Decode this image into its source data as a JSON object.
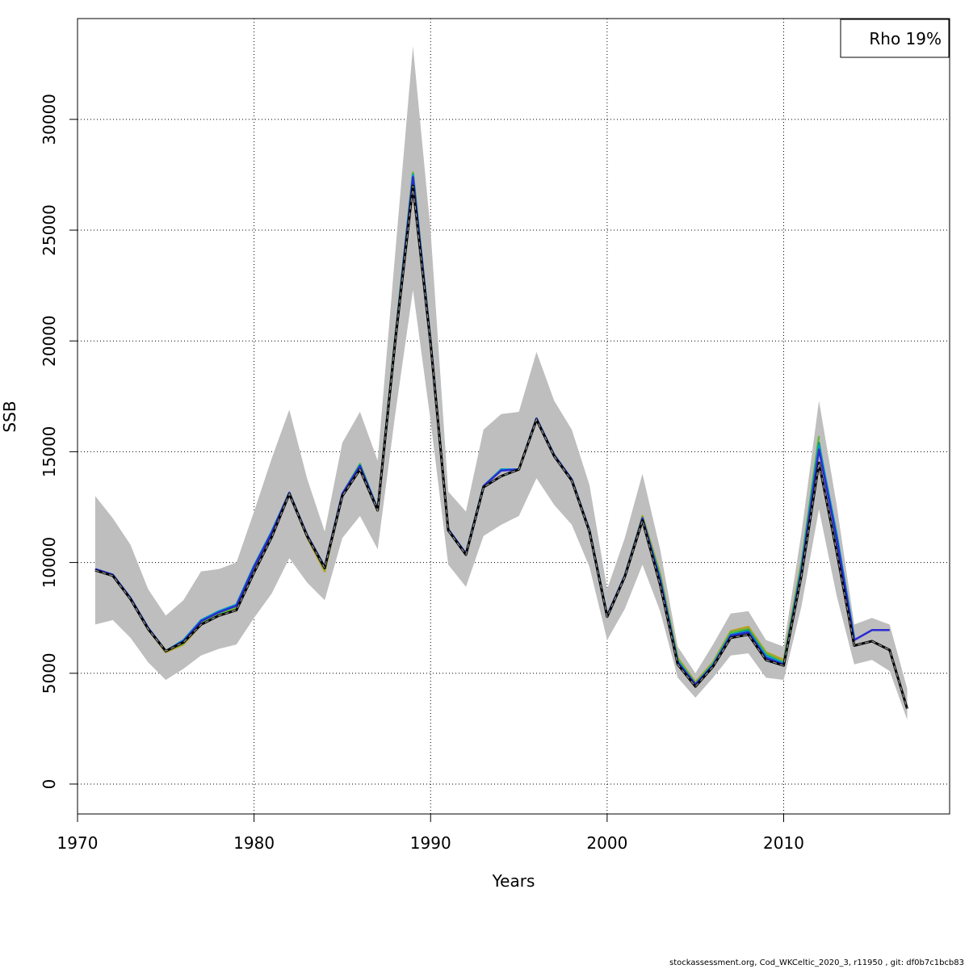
{
  "chart_data": {
    "type": "line",
    "title": "",
    "xlabel": "Years",
    "ylabel": "SSB",
    "xlim": [
      1970,
      2019.4
    ],
    "ylim": [
      -1350,
      34550
    ],
    "grid": true,
    "legend_text": "Rho 19%",
    "legend_position": "top-right",
    "x_ticks": [
      1970,
      1980,
      1990,
      2000,
      2010
    ],
    "y_ticks": [
      0,
      5000,
      10000,
      15000,
      20000,
      25000,
      30000
    ],
    "colors": {
      "band": "#bebebe",
      "base": "#000000",
      "peels": [
        "#2b2bd1",
        "#00a0c8",
        "#1a9a50",
        "#5fb83c",
        "#b8a020"
      ]
    },
    "band": {
      "x": [
        1971,
        1972,
        1973,
        1974,
        1975,
        1976,
        1977,
        1978,
        1979,
        1980,
        1981,
        1982,
        1983,
        1984,
        1985,
        1986,
        1987,
        1988,
        1989,
        1990,
        1991,
        1992,
        1993,
        1994,
        1995,
        1996,
        1997,
        1998,
        1999,
        2000,
        2001,
        2002,
        2003,
        2004,
        2005,
        2006,
        2007,
        2008,
        2009,
        2010,
        2011,
        2012,
        2013,
        2014,
        2015,
        2016,
        2017
      ],
      "upper": [
        13000,
        12000,
        10800,
        8800,
        7600,
        8300,
        9600,
        9700,
        10000,
        12300,
        14700,
        16900,
        13800,
        11400,
        15400,
        16800,
        14600,
        24000,
        33300,
        25000,
        13200,
        12300,
        16000,
        16700,
        16800,
        19500,
        17300,
        16000,
        13500,
        8800,
        11100,
        14000,
        10600,
        6200,
        5000,
        6300,
        7700,
        7800,
        6500,
        6200,
        11300,
        17300,
        12600,
        7200,
        7500,
        7200,
        4300
      ],
      "lower": [
        7200,
        7400,
        6600,
        5500,
        4700,
        5200,
        5800,
        6100,
        6300,
        7500,
        8600,
        10200,
        9100,
        8300,
        11100,
        12100,
        10600,
        16700,
        22300,
        16400,
        9900,
        8900,
        11200,
        11700,
        12100,
        13800,
        12600,
        11700,
        9800,
        6500,
        7900,
        9900,
        7800,
        4800,
        3900,
        4800,
        5800,
        5900,
        4800,
        4700,
        8000,
        12400,
        8500,
        5400,
        5600,
        5100,
        2900
      ]
    },
    "series": [
      {
        "x": [
          1971,
          1972,
          1973,
          1974,
          1975,
          1976,
          1977,
          1978,
          1979,
          1980,
          1981,
          1982,
          1983,
          1984,
          1985,
          1986,
          1987,
          1988,
          1989,
          1990,
          1991,
          1992,
          1993,
          1994,
          1995,
          1996,
          1997,
          1998,
          1999,
          2000,
          2001,
          2002,
          2003,
          2004,
          2005,
          2006,
          2007,
          2008,
          2009,
          2010,
          2011,
          2012,
          2013,
          2014,
          2015,
          2016,
          2017
        ],
        "y": [
          9650,
          9400,
          8350,
          7000,
          6000,
          6400,
          7200,
          7600,
          7850,
          9550,
          11150,
          13100,
          11200,
          9750,
          13000,
          14200,
          12350,
          20000,
          27000,
          19900,
          11450,
          10350,
          13400,
          13900,
          14200,
          16450,
          14800,
          13700,
          11400,
          7550,
          9350,
          11900,
          9000,
          5400,
          4400,
          5300,
          6600,
          6750,
          5600,
          5350,
          9400,
          14500,
          10500,
          6250,
          6450,
          6050,
          3400
        ],
        "dashed": true
      },
      {
        "x": [
          1971,
          1972,
          1973,
          1974,
          1975,
          1976,
          1977,
          1978,
          1979,
          1980,
          1981,
          1982,
          1983,
          1984,
          1985,
          1986,
          1987,
          1988,
          1989,
          1990,
          1991,
          1992,
          1993,
          1994,
          1995,
          1996,
          1997,
          1998,
          1999,
          2000,
          2001,
          2002,
          2003,
          2004,
          2005,
          2006,
          2007,
          2008,
          2009,
          2010,
          2011,
          2012,
          2013,
          2014,
          2015,
          2016
        ],
        "y": [
          9700,
          9450,
          8400,
          7050,
          6000,
          6450,
          7350,
          7750,
          8050,
          9800,
          11350,
          13150,
          11250,
          9800,
          13100,
          14350,
          12400,
          20100,
          27400,
          20000,
          11500,
          10400,
          13450,
          14150,
          14200,
          16500,
          14850,
          13750,
          11450,
          7600,
          9400,
          12000,
          9200,
          5500,
          4500,
          5350,
          6700,
          6850,
          5700,
          5400,
          9600,
          15100,
          11100,
          6500,
          6950,
          6950
        ],
        "dashed": false
      },
      {
        "x": [
          1971,
          1972,
          1973,
          1974,
          1975,
          1976,
          1977,
          1978,
          1979,
          1980,
          1981,
          1982,
          1983,
          1984,
          1985,
          1986,
          1987,
          1988,
          1989,
          1990,
          1991,
          1992,
          1993,
          1994,
          1995,
          1996,
          1997,
          1998,
          1999,
          2000,
          2001,
          2002,
          2003,
          2004,
          2005,
          2006,
          2007,
          2008,
          2009,
          2010,
          2011,
          2012,
          2013,
          2014
        ],
        "y": [
          9700,
          9450,
          8400,
          7050,
          6000,
          6500,
          7400,
          7800,
          8100,
          9850,
          11400,
          13150,
          11250,
          9800,
          13100,
          14400,
          12400,
          20100,
          27500,
          20000,
          11500,
          10400,
          13450,
          14200,
          14200,
          16500,
          14850,
          13750,
          11450,
          7600,
          9400,
          12000,
          9300,
          5550,
          4500,
          5400,
          6750,
          6900,
          5800,
          5450,
          9700,
          15300,
          11300,
          6600
        ],
        "dashed": false
      },
      {
        "x": [
          1971,
          1972,
          1973,
          1974,
          1975,
          1976,
          1977,
          1978,
          1979,
          1980,
          1981,
          1982,
          1983,
          1984,
          1985,
          1986,
          1987,
          1988,
          1989,
          1990,
          1991,
          1992,
          1993,
          1994,
          1995,
          1996,
          1997,
          1998,
          1999,
          2000,
          2001,
          2002,
          2003,
          2004,
          2005,
          2006,
          2007,
          2008,
          2009,
          2010,
          2011,
          2012,
          2013
        ],
        "y": [
          9700,
          9450,
          8400,
          7050,
          6000,
          6450,
          7350,
          7750,
          8100,
          9850,
          11400,
          13150,
          11250,
          9800,
          13100,
          14400,
          12400,
          20100,
          27500,
          20000,
          11500,
          10400,
          13450,
          14200,
          14200,
          16500,
          14850,
          13750,
          11450,
          7600,
          9400,
          12000,
          9300,
          5550,
          4500,
          5400,
          6750,
          6950,
          5800,
          5450,
          9800,
          15400,
          11000
        ],
        "dashed": false
      },
      {
        "x": [
          1971,
          1972,
          1973,
          1974,
          1975,
          1976,
          1977,
          1978,
          1979,
          1980,
          1981,
          1982,
          1983,
          1984,
          1985,
          1986,
          1987,
          1988,
          1989,
          1990,
          1991,
          1992,
          1993,
          1994,
          1995,
          1996,
          1997,
          1998,
          1999,
          2000,
          2001,
          2002,
          2003,
          2004,
          2005,
          2006,
          2007,
          2008,
          2009,
          2010,
          2011,
          2012
        ],
        "y": [
          9700,
          9450,
          8400,
          7050,
          6000,
          6350,
          7250,
          7650,
          8000,
          9800,
          11350,
          13150,
          11200,
          9700,
          13100,
          14450,
          12400,
          20200,
          27600,
          20000,
          11500,
          10400,
          13450,
          14200,
          14200,
          16500,
          14850,
          13750,
          11450,
          7600,
          9400,
          12050,
          9400,
          5650,
          4550,
          5450,
          6850,
          7000,
          5900,
          5500,
          9900,
          15700
        ],
        "dashed": false
      },
      {
        "x": [
          1971,
          1972,
          1973,
          1974,
          1975,
          1976,
          1977,
          1978,
          1979,
          1980,
          1981,
          1982,
          1983,
          1984,
          1985,
          1986,
          1987,
          1988,
          1989,
          1990,
          1991,
          1992,
          1993,
          1994,
          1995,
          1996,
          1997,
          1998,
          1999,
          2000,
          2001,
          2002,
          2003,
          2004,
          2005,
          2006,
          2007,
          2008,
          2009,
          2010,
          2011
        ],
        "y": [
          9650,
          9400,
          8350,
          7000,
          5950,
          6300,
          7200,
          7600,
          7950,
          9750,
          11300,
          13100,
          11150,
          9600,
          13050,
          14450,
          12350,
          20200,
          27600,
          20000,
          11500,
          10350,
          13450,
          14200,
          14200,
          16450,
          14800,
          13700,
          11400,
          7550,
          9400,
          12100,
          9500,
          5700,
          4600,
          5500,
          6900,
          7100,
          5950,
          5600,
          10000
        ]
      }
    ]
  },
  "footer": "stockassessment.org, Cod_WKCeltic_2020_3, r11950 , git: df0b7c1bcb83"
}
